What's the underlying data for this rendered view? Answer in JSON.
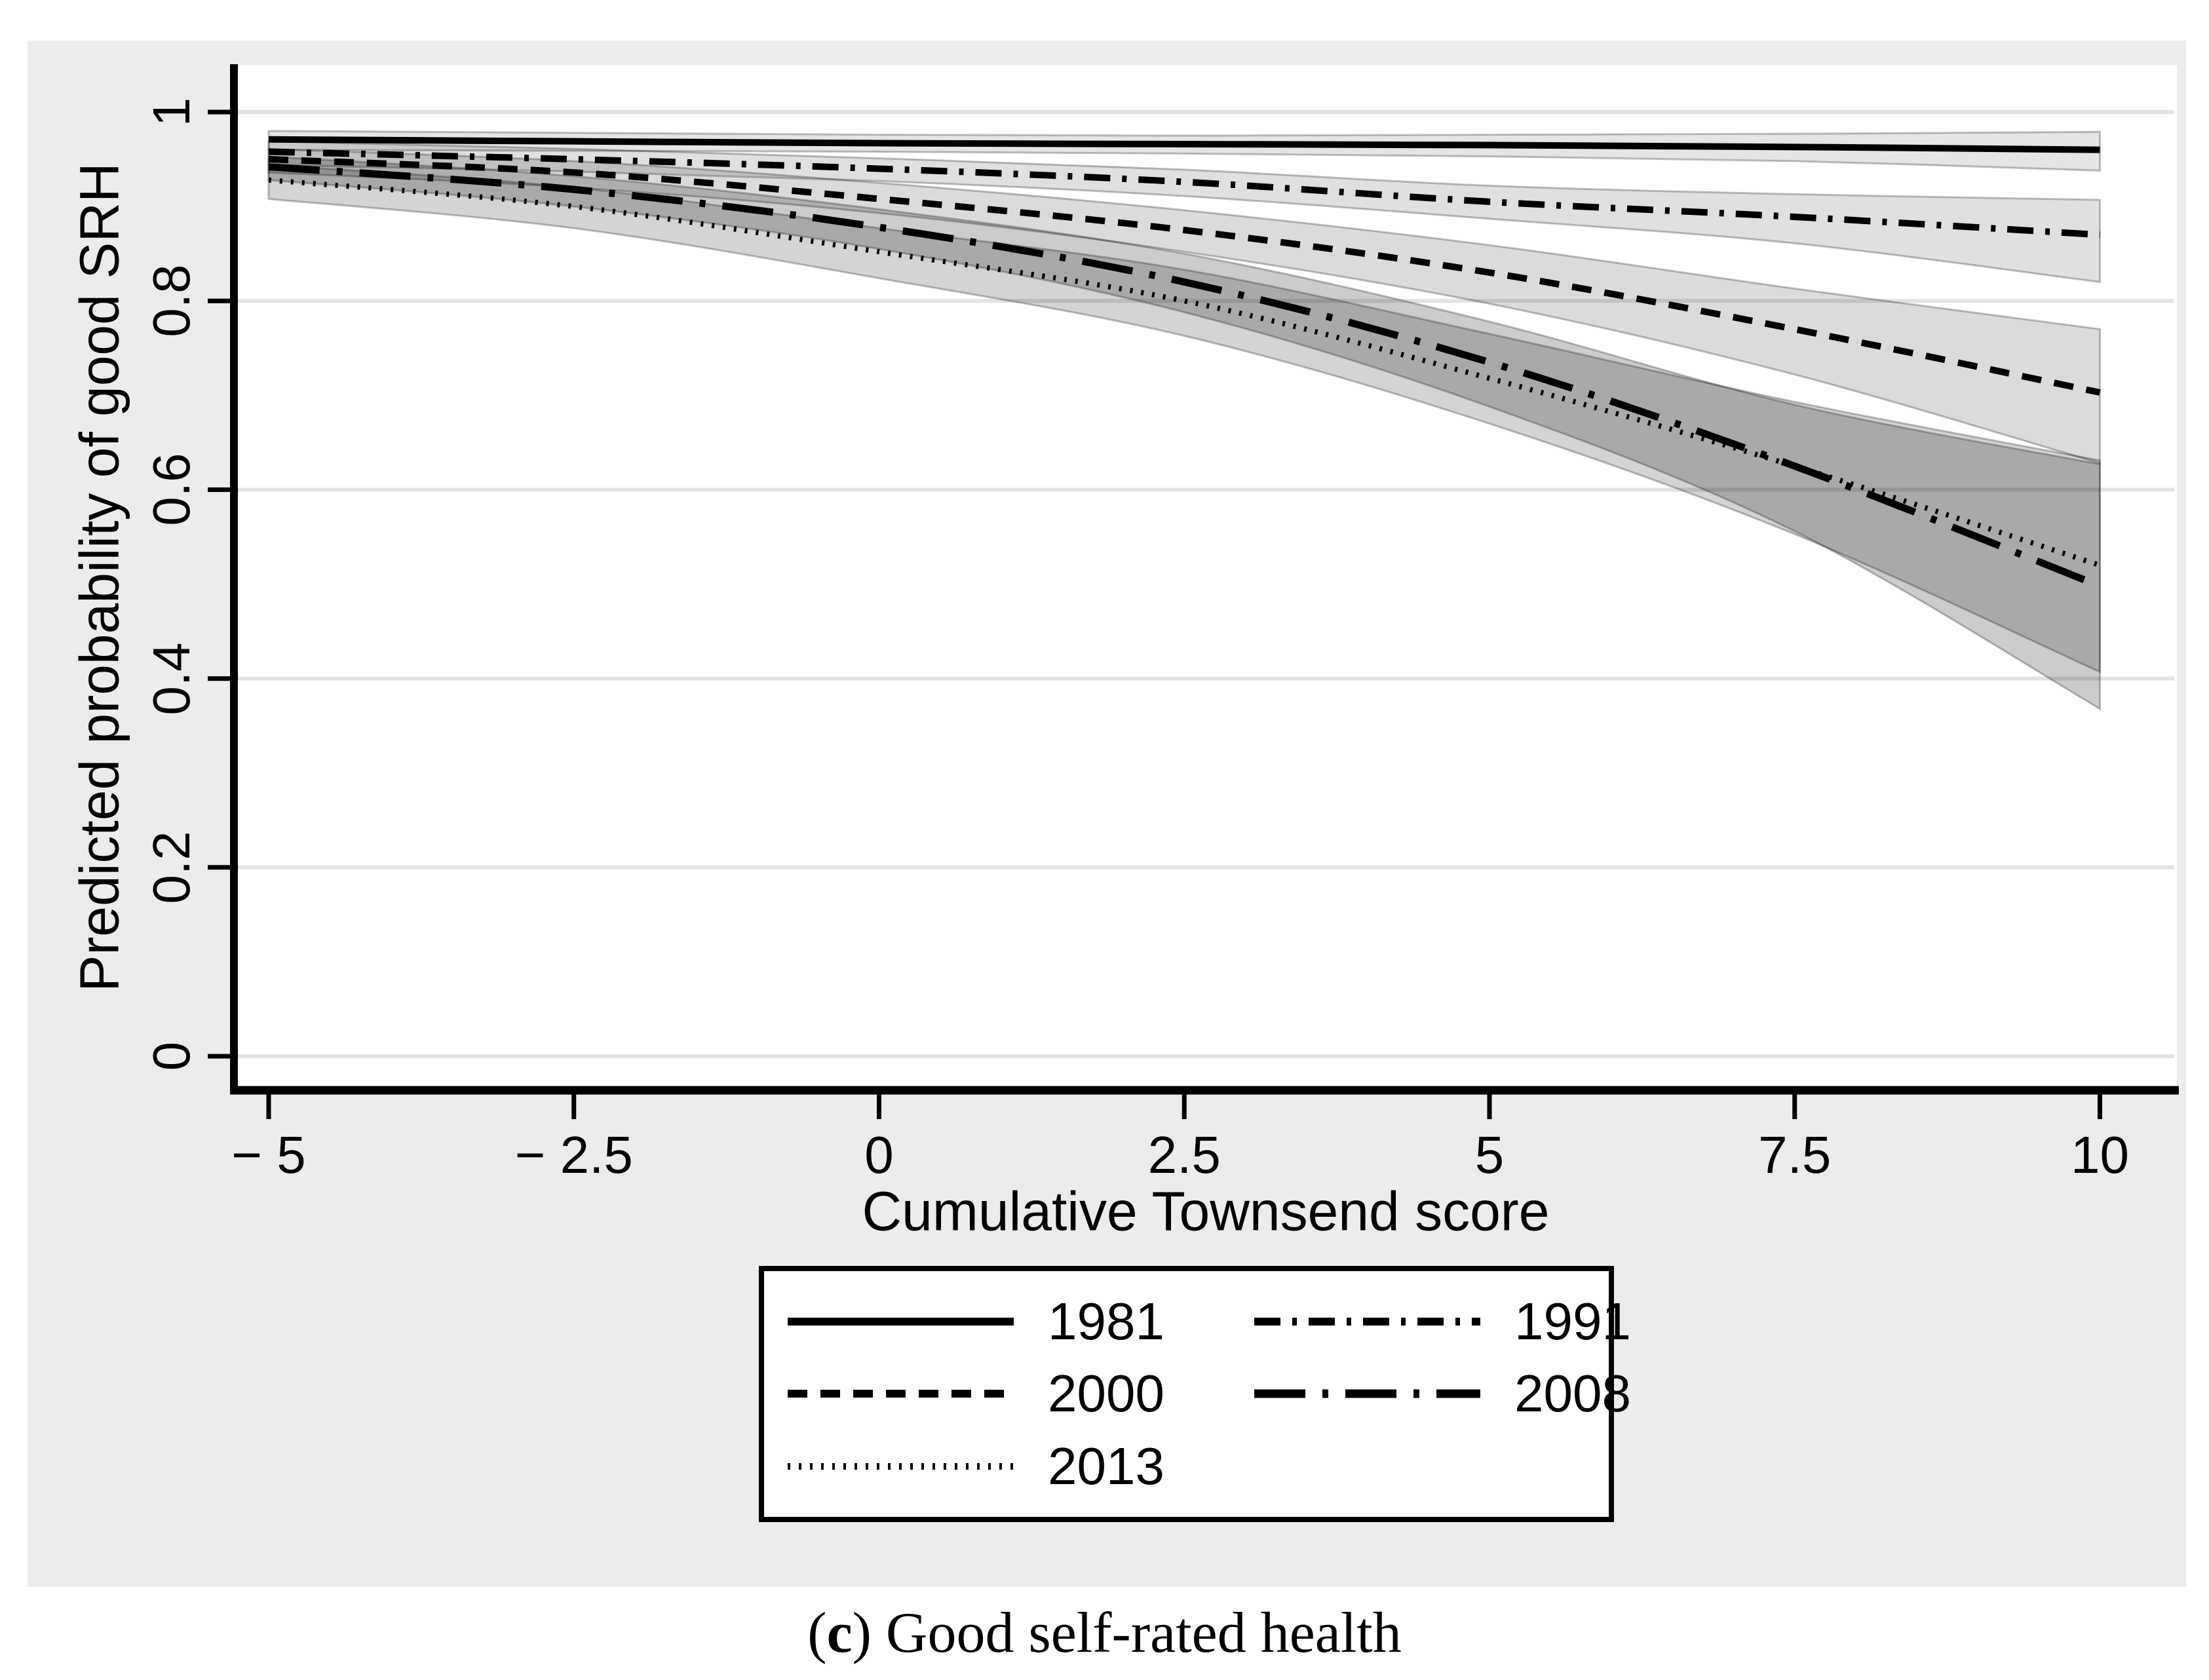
{
  "figure": {
    "panel_bg": "#ececec",
    "plot_bg": "#ffffff",
    "grid_color": "#e3e3e3",
    "axis_color": "#000000",
    "band_color": "#000000"
  },
  "chart_data": {
    "type": "line",
    "title": "",
    "xlabel": "Cumulative Townsend score",
    "ylabel": "Predicted probability of good SRH",
    "xlim": [
      -5,
      10
    ],
    "ylim": [
      0,
      1
    ],
    "grid": "horizontal",
    "legend_position": "below-plot",
    "x_ticks": [
      {
        "value": -5,
        "label": "− 5"
      },
      {
        "value": -2.5,
        "label": "− 2.5"
      },
      {
        "value": 0,
        "label": "0"
      },
      {
        "value": 2.5,
        "label": "2.5"
      },
      {
        "value": 5,
        "label": "5"
      },
      {
        "value": 7.5,
        "label": "7.5"
      },
      {
        "value": 10,
        "label": "10"
      }
    ],
    "y_ticks": [
      {
        "value": 0,
        "label": "0"
      },
      {
        "value": 0.2,
        "label": "0.2"
      },
      {
        "value": 0.4,
        "label": "0.4"
      },
      {
        "value": 0.6,
        "label": "0.6"
      },
      {
        "value": 0.8,
        "label": "0.8"
      },
      {
        "value": 1,
        "label": "1"
      }
    ],
    "x": [
      -5,
      -2.5,
      0,
      2.5,
      5,
      7.5,
      10
    ],
    "series": [
      {
        "name": "1981",
        "style": "solid",
        "values": [
          0.971,
          0.969,
          0.967,
          0.966,
          0.965,
          0.963,
          0.96
        ],
        "ci_low": [
          0.96,
          0.959,
          0.958,
          0.956,
          0.953,
          0.948,
          0.938
        ],
        "ci_high": [
          0.98,
          0.978,
          0.976,
          0.975,
          0.976,
          0.977,
          0.979
        ],
        "band_opacity": 0.1
      },
      {
        "name": "1991",
        "style": "dash-dot",
        "values": [
          0.958,
          0.95,
          0.94,
          0.926,
          0.905,
          0.889,
          0.87
        ],
        "ci_low": [
          0.944,
          0.937,
          0.927,
          0.911,
          0.887,
          0.861,
          0.82
        ],
        "ci_high": [
          0.969,
          0.961,
          0.951,
          0.939,
          0.922,
          0.913,
          0.907
        ],
        "band_opacity": 0.12
      },
      {
        "name": "2000",
        "style": "dash",
        "values": [
          0.95,
          0.936,
          0.908,
          0.875,
          0.83,
          0.77,
          0.703
        ],
        "ci_low": [
          0.936,
          0.92,
          0.893,
          0.852,
          0.797,
          0.722,
          0.628
        ],
        "ci_high": [
          0.961,
          0.948,
          0.925,
          0.896,
          0.859,
          0.813,
          0.77
        ],
        "band_opacity": 0.14
      },
      {
        "name": "2008",
        "style": "long-dash-dot",
        "values": [
          0.942,
          0.918,
          0.878,
          0.82,
          0.735,
          0.625,
          0.498
        ],
        "ci_low": [
          0.928,
          0.9,
          0.855,
          0.788,
          0.688,
          0.556,
          0.368
        ],
        "ci_high": [
          0.953,
          0.932,
          0.897,
          0.85,
          0.778,
          0.69,
          0.627
        ],
        "band_opacity": 0.2
      },
      {
        "name": "2013",
        "style": "dot",
        "values": [
          0.928,
          0.9,
          0.852,
          0.8,
          0.718,
          0.625,
          0.52
        ],
        "ci_low": [
          0.908,
          0.877,
          0.824,
          0.763,
          0.67,
          0.553,
          0.407
        ],
        "ci_high": [
          0.944,
          0.92,
          0.877,
          0.833,
          0.765,
          0.693,
          0.631
        ],
        "band_opacity": 0.17
      }
    ]
  },
  "legend": {
    "items": [
      {
        "label": "1981",
        "style": "solid"
      },
      {
        "label": "1991",
        "style": "dash-dot"
      },
      {
        "label": "2000",
        "style": "dash"
      },
      {
        "label": "2008",
        "style": "long-dash-dot"
      },
      {
        "label": "2013",
        "style": "dot"
      }
    ]
  },
  "axis_titles": {
    "x": "Cumulative Townsend score",
    "y": "Predicted probability of good SRH"
  },
  "caption": {
    "open": "(",
    "letter": "c",
    "rest": ") Good self-rated health"
  }
}
